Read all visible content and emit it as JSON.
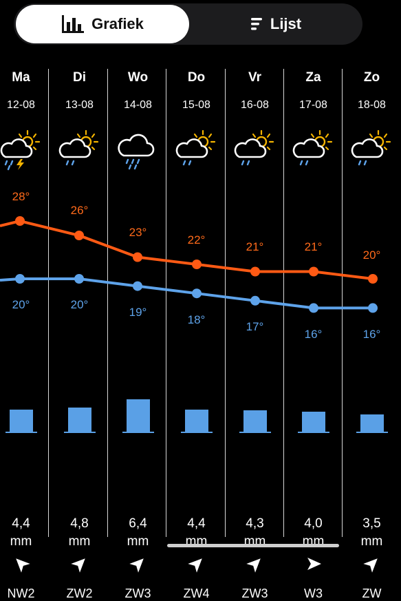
{
  "view_toggle": {
    "graph_label": "Grafiek",
    "list_label": "Lijst",
    "active": "graph"
  },
  "colors": {
    "max_temp": "#ff5a14",
    "min_temp": "#5ea3ea",
    "rain": "#5aa0e6"
  },
  "days": [
    {
      "name": "Ma",
      "date": "12-08",
      "icon": "rain-thunder-sun-cloud-icon",
      "max": "28°",
      "min": "20°",
      "rain": "4,4",
      "unit": "mm",
      "wind": "NW2",
      "wind_dir_deg": 315
    },
    {
      "name": "Di",
      "date": "13-08",
      "icon": "rain-sun-cloud-icon",
      "max": "26°",
      "min": "20°",
      "rain": "4,8",
      "unit": "mm",
      "wind": "ZW2",
      "wind_dir_deg": 45
    },
    {
      "name": "Wo",
      "date": "14-08",
      "icon": "heavy-rain-cloud-icon",
      "max": "23°",
      "min": "19°",
      "rain": "6,4",
      "unit": "mm",
      "wind": "ZW3",
      "wind_dir_deg": 45
    },
    {
      "name": "Do",
      "date": "15-08",
      "icon": "rain-sun-cloud-icon",
      "max": "22°",
      "min": "18°",
      "rain": "4,4",
      "unit": "mm",
      "wind": "ZW4",
      "wind_dir_deg": 45
    },
    {
      "name": "Vr",
      "date": "16-08",
      "icon": "rain-sun-cloud-icon",
      "max": "21°",
      "min": "17°",
      "rain": "4,3",
      "unit": "mm",
      "wind": "ZW3",
      "wind_dir_deg": 45
    },
    {
      "name": "Za",
      "date": "17-08",
      "icon": "rain-sun-cloud-icon",
      "max": "21°",
      "min": "16°",
      "rain": "4,0",
      "unit": "mm",
      "wind": "W3",
      "wind_dir_deg": 90
    },
    {
      "name": "Zo",
      "date": "18-08",
      "icon": "rain-sun-cloud-icon",
      "max": "20°",
      "min": "16°",
      "rain": "3,5",
      "unit": "mm",
      "wind": "ZW",
      "wind_dir_deg": 45
    }
  ],
  "chart_data": {
    "type": "line",
    "categories": [
      "Ma",
      "Di",
      "Wo",
      "Do",
      "Vr",
      "Za",
      "Zo"
    ],
    "series": [
      {
        "values": [
          28,
          26,
          23,
          22,
          21,
          21,
          20
        ]
      },
      {
        "values": [
          20,
          20,
          19,
          18,
          17,
          16,
          16
        ]
      }
    ],
    "rain_mm": [
      4.4,
      4.8,
      6.4,
      4.4,
      4.3,
      4.0,
      3.5
    ]
  }
}
